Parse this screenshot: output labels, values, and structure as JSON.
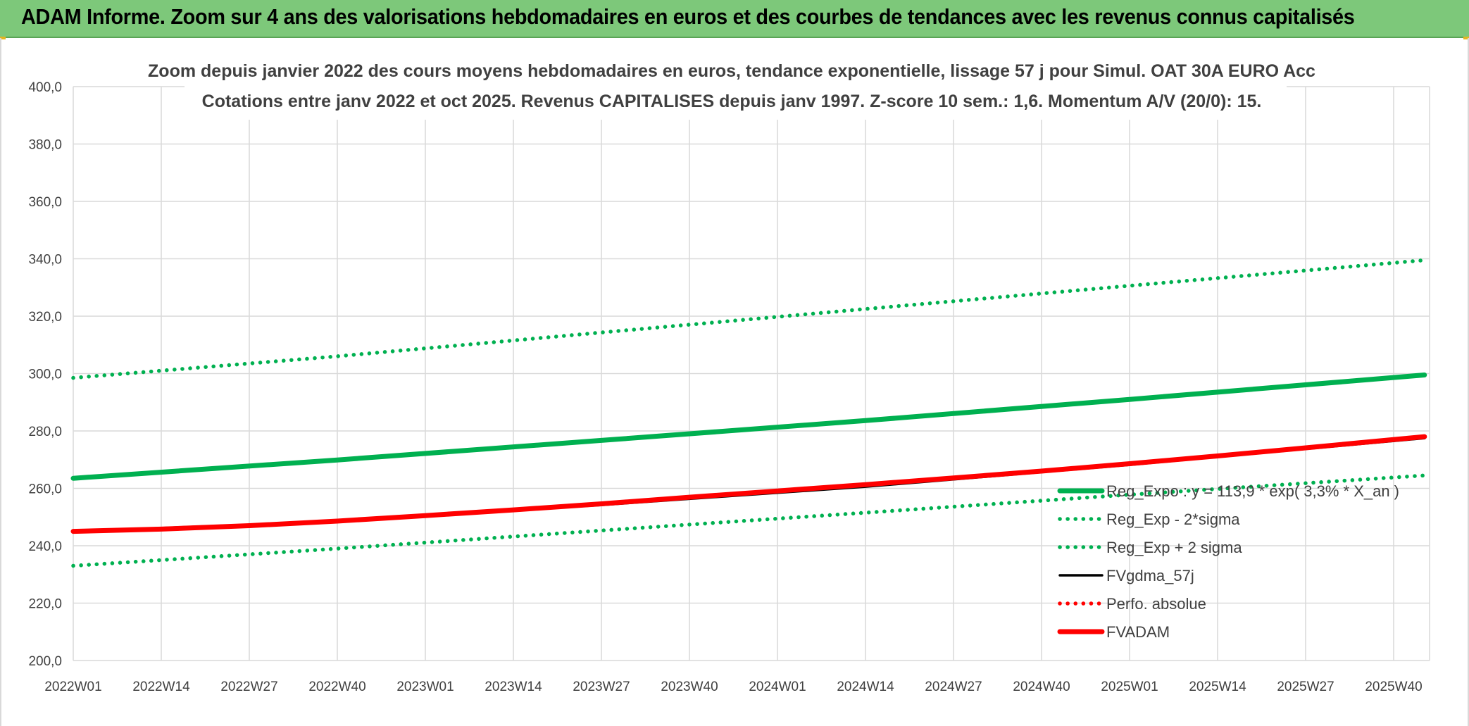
{
  "banner": {
    "title": "ADAM Informe. Zoom sur 4 ans des valorisations hebdomadaires en euros et des courbes de tendances avec les revenus connus capitalisés"
  },
  "colors": {
    "banner": "#7dc87a",
    "green": "#00b050",
    "red": "#ff0000",
    "black": "#000000",
    "grid": "#d9d9d9",
    "text": "#404040"
  },
  "chart_data": {
    "type": "line",
    "title": "Zoom depuis janvier 2022 des cours moyens hebdomadaires en euros, tendance exponentielle, lissage 57 j pour Simul. OAT 30A EURO Acc",
    "subtitle": "Cotations entre janv 2022 et oct 2025. Revenus CAPITALISES depuis janv 1997. Z-score 10 sem.: 1,6. Momentum A/V (20/0): 15.",
    "categories": [
      "2022W01",
      "2022W14",
      "2022W27",
      "2022W40",
      "2023W01",
      "2023W14",
      "2023W27",
      "2023W40",
      "2024W01",
      "2024W14",
      "2024W27",
      "2024W40",
      "2025W01",
      "2025W14",
      "2025W27",
      "2025W40"
    ],
    "x_index_range": [
      0,
      15.35
    ],
    "ylim": [
      200,
      400
    ],
    "yticks": [
      "200,0",
      "220,0",
      "240,0",
      "260,0",
      "280,0",
      "300,0",
      "320,0",
      "340,0",
      "360,0",
      "380,0",
      "400,0"
    ],
    "grid": true,
    "legend_position": "bottom-right",
    "series": [
      {
        "name": "Reg_Expo : y = 113,9 * exp( 3,3% * X_an )",
        "style": "solid-thick",
        "color": "#00b050",
        "x": [
          0,
          3,
          6,
          9,
          12,
          15.35
        ],
        "values": [
          263.5,
          269.9,
          276.7,
          283.6,
          291.0,
          299.5
        ]
      },
      {
        "name": "Reg_Exp - 2*sigma",
        "style": "dotted",
        "color": "#00b050",
        "x": [
          0,
          3,
          6,
          9,
          12,
          15.35
        ],
        "values": [
          233.0,
          239.0,
          245.3,
          251.5,
          257.8,
          264.5
        ]
      },
      {
        "name": "Reg_Exp + 2 sigma",
        "style": "dotted",
        "color": "#00b050",
        "x": [
          0,
          3,
          6,
          9,
          12,
          15.35
        ],
        "values": [
          298.5,
          306.0,
          314.3,
          322.5,
          330.6,
          339.5
        ]
      },
      {
        "name": "FVgdma_57j",
        "style": "solid",
        "color": "#000000",
        "x": [
          0,
          3,
          6,
          9,
          12,
          15.35
        ],
        "values": [
          245.0,
          248.5,
          254.2,
          260.6,
          268.2,
          277.5
        ]
      },
      {
        "name": "Perfo. absolue",
        "style": "dotted",
        "color": "#ff0000",
        "x": [],
        "values": []
      },
      {
        "name": "FVADAM",
        "style": "solid-thick",
        "color": "#ff0000",
        "x": [
          0,
          1,
          2,
          3,
          4,
          5,
          6,
          7,
          8,
          9,
          10,
          11,
          12,
          13,
          14,
          15.35
        ],
        "values": [
          245.0,
          245.8,
          247.0,
          248.6,
          250.5,
          252.5,
          254.6,
          256.9,
          259.1,
          261.3,
          263.6,
          266.0,
          268.6,
          271.3,
          274.1,
          278.0
        ]
      }
    ]
  }
}
